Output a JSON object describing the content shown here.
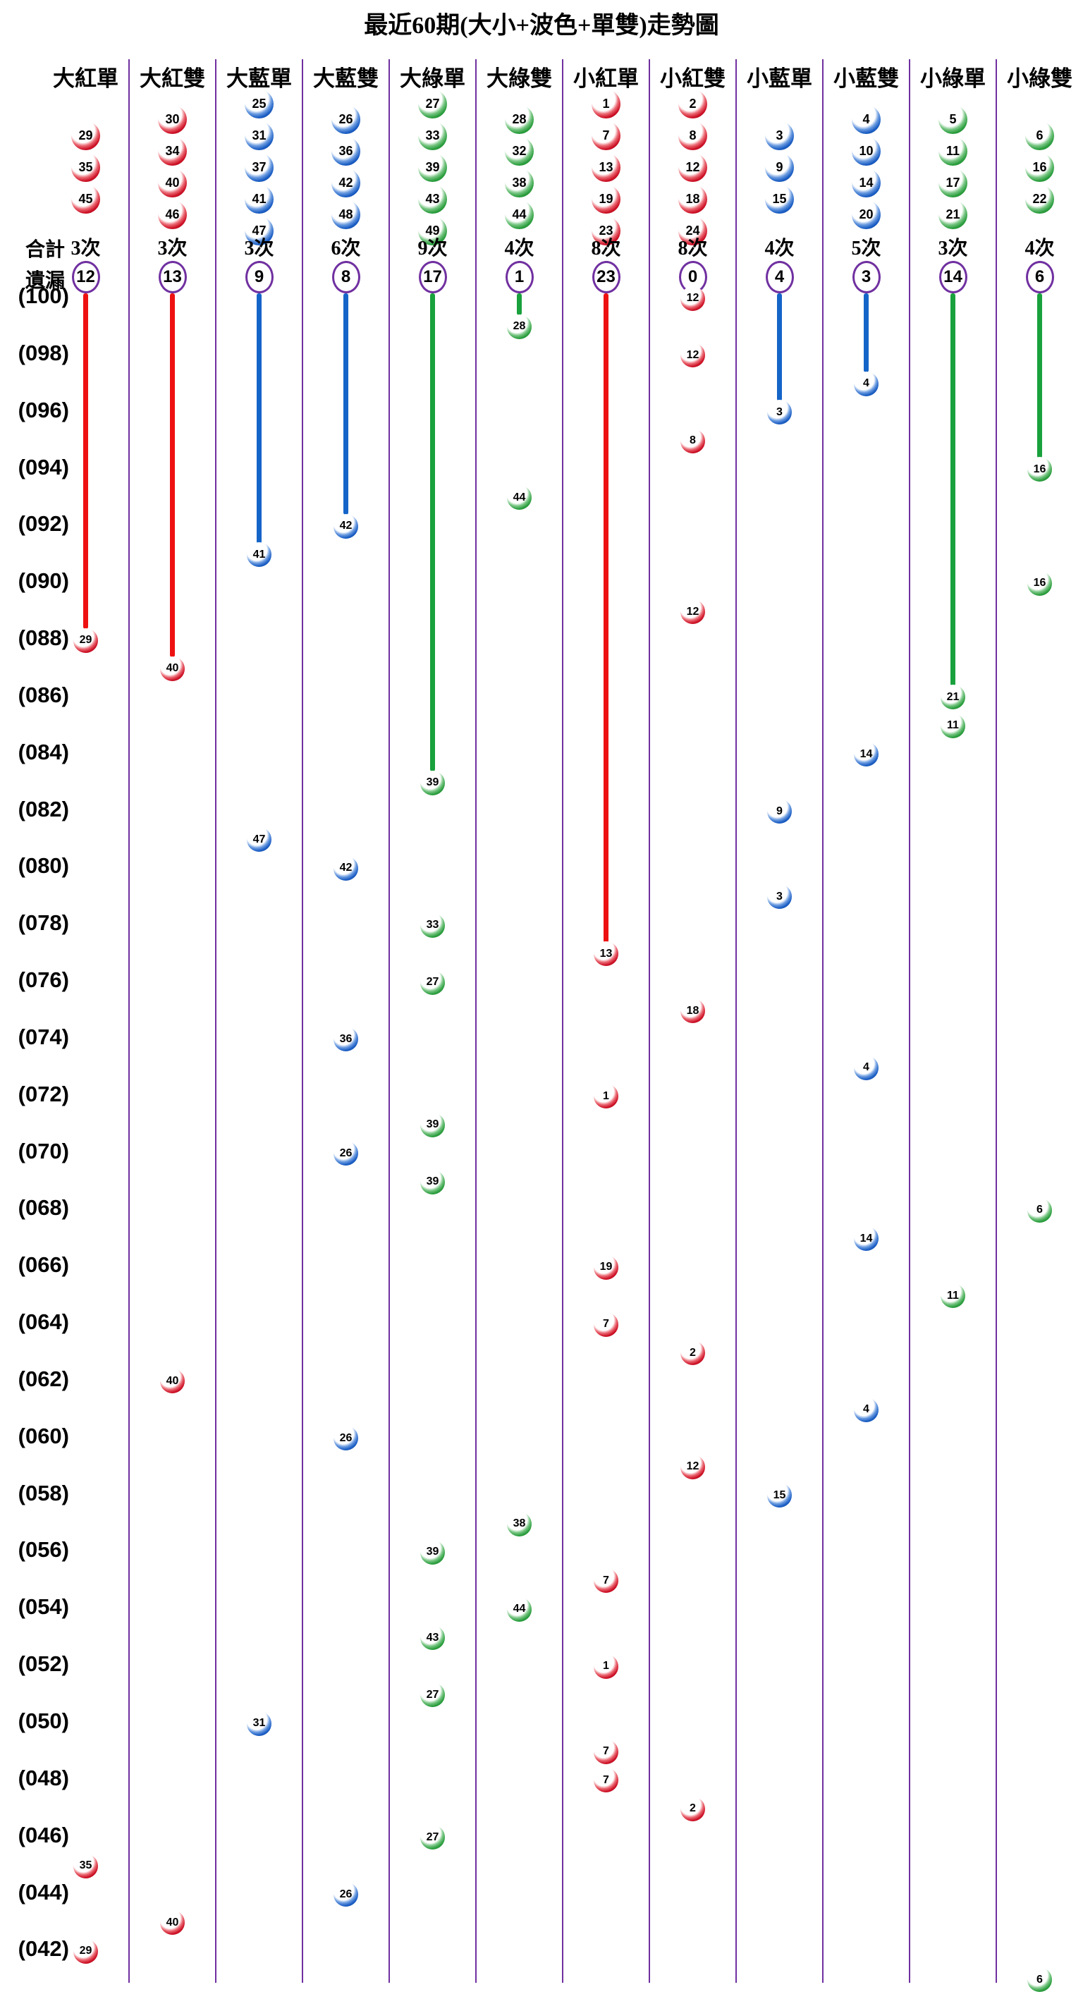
{
  "title": "最近60期(大小+波色+單雙)走勢圖",
  "gutter": {
    "total_label": "合計",
    "miss_label": "遺漏"
  },
  "colors": {
    "red_ball": "#CE1126",
    "blue_ball": "#1A5DC4",
    "green_ball": "#2B9E3E",
    "red_line": "#EE1111",
    "blue_line": "#1565C8",
    "green_line": "#19A13D",
    "divider": "#7030A0",
    "badge_ring": "#7030A0"
  },
  "chart_data": {
    "type": "scatter",
    "title": "最近60期(大小+波色+單雙)走勢圖",
    "legend_position": "none",
    "grid": false,
    "period_axis": {
      "min": 41,
      "max": 100,
      "labeled_every": 2,
      "labels": [
        "(100)",
        "(098)",
        "(096)",
        "(094)",
        "(092)",
        "(090)",
        "(088)",
        "(086)",
        "(084)",
        "(082)",
        "(080)",
        "(078)",
        "(076)",
        "(074)",
        "(072)",
        "(070)",
        "(068)",
        "(066)",
        "(064)",
        "(062)",
        "(060)",
        "(058)",
        "(056)",
        "(054)",
        "(052)",
        "(050)",
        "(048)",
        "(046)",
        "(044)",
        "(042)"
      ]
    },
    "columns": [
      {
        "label": "大紅單",
        "color": "red",
        "members": [
          29,
          35,
          45
        ],
        "total": "3次",
        "missing": 12,
        "hits": [
          {
            "period": 88,
            "number": 29
          },
          {
            "period": 45,
            "number": 35
          },
          {
            "period": 42,
            "number": 29
          }
        ]
      },
      {
        "label": "大紅雙",
        "color": "red",
        "members": [
          30,
          34,
          40,
          46
        ],
        "total": "3次",
        "missing": 13,
        "hits": [
          {
            "period": 87,
            "number": 40
          },
          {
            "period": 62,
            "number": 40
          },
          {
            "period": 43,
            "number": 40
          }
        ]
      },
      {
        "label": "大藍單",
        "color": "blue",
        "members": [
          25,
          31,
          37,
          41,
          47
        ],
        "total": "3次",
        "missing": 9,
        "hits": [
          {
            "period": 91,
            "number": 41
          },
          {
            "period": 81,
            "number": 47
          },
          {
            "period": 50,
            "number": 31
          }
        ]
      },
      {
        "label": "大藍雙",
        "color": "blue",
        "members": [
          26,
          36,
          42,
          48
        ],
        "total": "6次",
        "missing": 8,
        "hits": [
          {
            "period": 92,
            "number": 42
          },
          {
            "period": 80,
            "number": 42
          },
          {
            "period": 74,
            "number": 36
          },
          {
            "period": 70,
            "number": 26
          },
          {
            "period": 60,
            "number": 26
          },
          {
            "period": 44,
            "number": 26
          }
        ]
      },
      {
        "label": "大綠單",
        "color": "green",
        "members": [
          27,
          33,
          39,
          43,
          49
        ],
        "total": "9次",
        "missing": 17,
        "hits": [
          {
            "period": 83,
            "number": 39
          },
          {
            "period": 78,
            "number": 33
          },
          {
            "period": 76,
            "number": 27
          },
          {
            "period": 71,
            "number": 39
          },
          {
            "period": 69,
            "number": 39
          },
          {
            "period": 56,
            "number": 39
          },
          {
            "period": 53,
            "number": 43
          },
          {
            "period": 51,
            "number": 27
          },
          {
            "period": 46,
            "number": 27
          }
        ]
      },
      {
        "label": "大綠雙",
        "color": "green",
        "members": [
          28,
          32,
          38,
          44
        ],
        "total": "4次",
        "missing": 1,
        "hits": [
          {
            "period": 99,
            "number": 28
          },
          {
            "period": 93,
            "number": 44
          },
          {
            "period": 57,
            "number": 38
          },
          {
            "period": 54,
            "number": 44
          }
        ]
      },
      {
        "label": "小紅單",
        "color": "red",
        "members": [
          1,
          7,
          13,
          19,
          23
        ],
        "total": "8次",
        "missing": 23,
        "hits": [
          {
            "period": 77,
            "number": 13
          },
          {
            "period": 72,
            "number": 1
          },
          {
            "period": 66,
            "number": 19
          },
          {
            "period": 64,
            "number": 7
          },
          {
            "period": 55,
            "number": 7
          },
          {
            "period": 52,
            "number": 1
          },
          {
            "period": 49,
            "number": 7
          },
          {
            "period": 48,
            "number": 7
          }
        ]
      },
      {
        "label": "小紅雙",
        "color": "red",
        "members": [
          2,
          8,
          12,
          18,
          24
        ],
        "total": "8次",
        "missing": 0,
        "hits": [
          {
            "period": 100,
            "number": 12
          },
          {
            "period": 98,
            "number": 12
          },
          {
            "period": 95,
            "number": 8
          },
          {
            "period": 89,
            "number": 12
          },
          {
            "period": 75,
            "number": 18
          },
          {
            "period": 63,
            "number": 2
          },
          {
            "period": 59,
            "number": 12
          },
          {
            "period": 47,
            "number": 2
          }
        ]
      },
      {
        "label": "小藍單",
        "color": "blue",
        "members": [
          3,
          9,
          15
        ],
        "total": "4次",
        "missing": 4,
        "hits": [
          {
            "period": 96,
            "number": 3
          },
          {
            "period": 82,
            "number": 9
          },
          {
            "period": 79,
            "number": 3
          },
          {
            "period": 58,
            "number": 15
          }
        ]
      },
      {
        "label": "小藍雙",
        "color": "blue",
        "members": [
          4,
          10,
          14,
          20
        ],
        "total": "5次",
        "missing": 3,
        "hits": [
          {
            "period": 97,
            "number": 4
          },
          {
            "period": 84,
            "number": 14
          },
          {
            "period": 73,
            "number": 4
          },
          {
            "period": 67,
            "number": 14
          },
          {
            "period": 61,
            "number": 4
          }
        ]
      },
      {
        "label": "小綠單",
        "color": "green",
        "members": [
          5,
          11,
          17,
          21
        ],
        "total": "3次",
        "missing": 14,
        "hits": [
          {
            "period": 86,
            "number": 21
          },
          {
            "period": 85,
            "number": 11
          },
          {
            "period": 65,
            "number": 11
          }
        ]
      },
      {
        "label": "小綠雙",
        "color": "green",
        "members": [
          6,
          16,
          22
        ],
        "total": "4次",
        "missing": 6,
        "hits": [
          {
            "period": 94,
            "number": 16
          },
          {
            "period": 90,
            "number": 16
          },
          {
            "period": 68,
            "number": 6
          },
          {
            "period": 41,
            "number": 6
          }
        ]
      }
    ]
  }
}
